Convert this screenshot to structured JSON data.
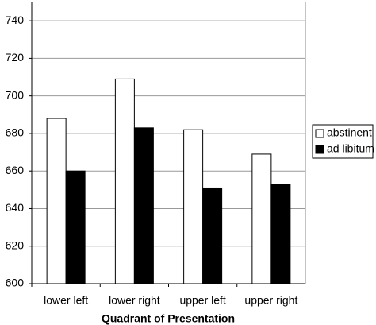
{
  "chart_data": {
    "type": "bar",
    "x_label": "Quadrant of Presentation",
    "categories": [
      "lower left",
      "lower right",
      "upper left",
      "upper right"
    ],
    "series": [
      {
        "name": "abstinent",
        "color": "#ffffff",
        "values": [
          688,
          709,
          682,
          669
        ]
      },
      {
        "name": "ad libitum",
        "color": "#000000",
        "values": [
          660,
          683,
          651,
          653
        ]
      }
    ],
    "ylim": [
      600,
      750
    ],
    "yticks": [
      600,
      620,
      640,
      660,
      680,
      700,
      720,
      740
    ],
    "grid": true,
    "legend": "right"
  }
}
